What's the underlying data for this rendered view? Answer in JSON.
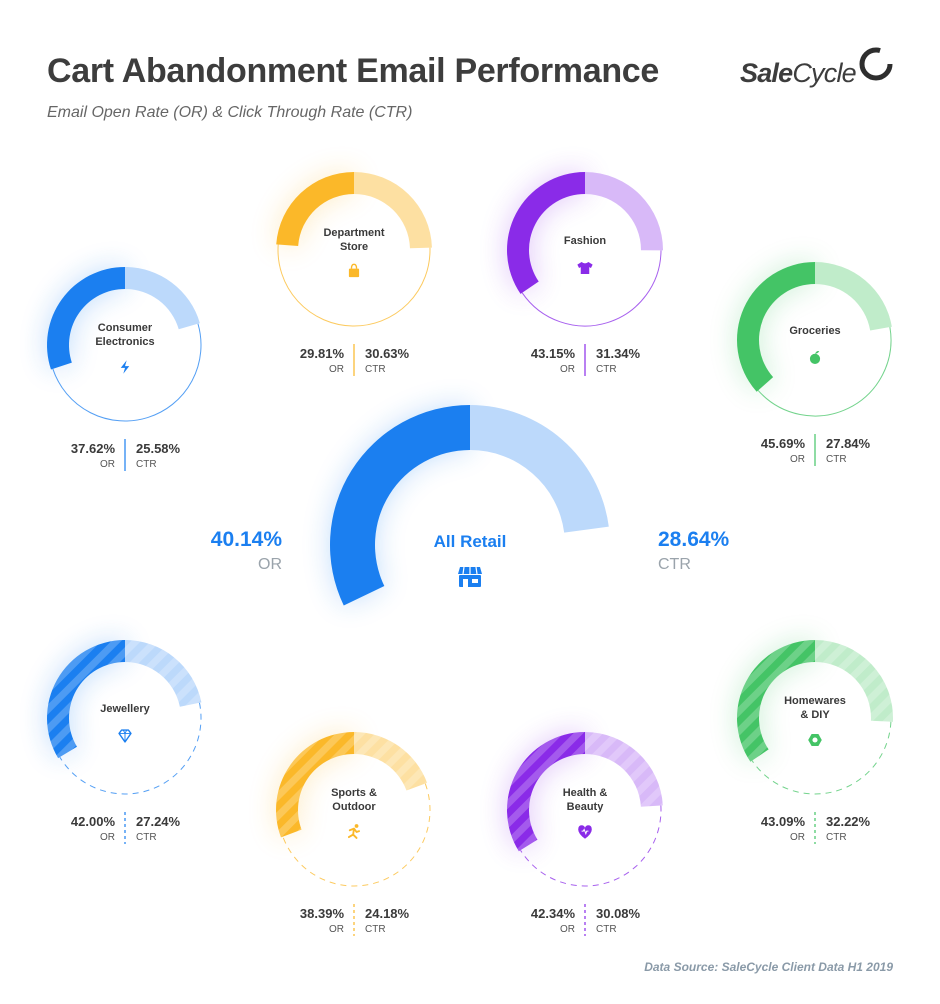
{
  "header": {
    "title": "Cart Abandonment Email Performance",
    "subtitle": "Email Open Rate (OR) & Click Through Rate (CTR)"
  },
  "logo": {
    "sale": "Sale",
    "cycle": "Cycle"
  },
  "footer": {
    "source": "Data Source: SaleCycle Client Data H1 2019"
  },
  "chart_data": {
    "type": "gauge-donut",
    "title": "Cart Abandonment Email Performance",
    "subtitle": "Email Open Rate (OR) & Click Through Rate (CTR)",
    "metrics": [
      "OR",
      "CTR"
    ],
    "main": {
      "name": "All Retail",
      "or_value": 40.14,
      "ctr_value": 28.64,
      "or_text": "40.14%",
      "ctr_text": "28.64%",
      "or_label": "OR",
      "ctr_label": "CTR",
      "or_color": "#1b7ff0",
      "ctr_color": "#bcd9fb",
      "icon": "store-icon"
    },
    "categories": [
      {
        "name": "Department Store",
        "or_value": 29.81,
        "ctr_value": 30.63,
        "or_text": "29.81%",
        "ctr_text": "30.63%",
        "or_color": "#fbb829",
        "ctr_color": "#fde0a2",
        "icon": "shopping-bag-icon",
        "striped": false
      },
      {
        "name": "Fashion",
        "or_value": 43.15,
        "ctr_value": 31.34,
        "or_text": "43.15%",
        "ctr_text": "31.34%",
        "or_color": "#8a2be8",
        "ctr_color": "#d8b9f8",
        "icon": "tshirt-icon",
        "striped": false
      },
      {
        "name": "Consumer Electronics",
        "or_value": 37.62,
        "ctr_value": 25.58,
        "or_text": "37.62%",
        "ctr_text": "25.58%",
        "or_color": "#1b7ff0",
        "ctr_color": "#bcd9fb",
        "icon": "lightning-icon",
        "striped": false
      },
      {
        "name": "Groceries",
        "or_value": 45.69,
        "ctr_value": 27.84,
        "or_text": "45.69%",
        "ctr_text": "27.84%",
        "or_color": "#44c466",
        "ctr_color": "#c0ecca",
        "icon": "apple-icon",
        "striped": false
      },
      {
        "name": "Jewellery",
        "or_value": 42.0,
        "ctr_value": 27.24,
        "or_text": "42.00%",
        "ctr_text": "27.24%",
        "or_color": "#1b7ff0",
        "ctr_color": "#bcd9fb",
        "icon": "diamond-icon",
        "striped": true
      },
      {
        "name": "Homewares & DIY",
        "or_value": 43.09,
        "ctr_value": 32.22,
        "or_text": "43.09%",
        "ctr_text": "32.22%",
        "or_color": "#44c466",
        "ctr_color": "#c0ecca",
        "icon": "nut-icon",
        "striped": true
      },
      {
        "name": "Sports & Outdoor",
        "or_value": 38.39,
        "ctr_value": 24.18,
        "or_text": "38.39%",
        "ctr_text": "24.18%",
        "or_color": "#fbb829",
        "ctr_color": "#fde0a2",
        "icon": "runner-icon",
        "striped": true
      },
      {
        "name": "Health & Beauty",
        "or_value": 42.34,
        "ctr_value": 30.08,
        "or_text": "42.34%",
        "ctr_text": "30.08%",
        "or_color": "#8a2be8",
        "ctr_color": "#d8b9f8",
        "icon": "heart-icon",
        "striped": true
      }
    ]
  }
}
